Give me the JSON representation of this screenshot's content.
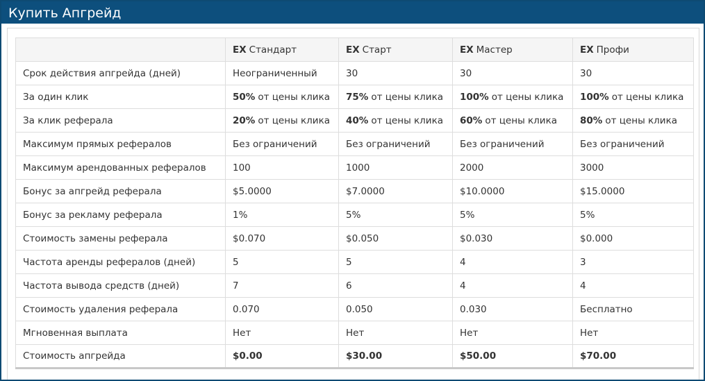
{
  "header": {
    "title": "Купить Апгрейд"
  },
  "table": {
    "columns": [
      "",
      {
        "b": "EX",
        "t": "Стандарт"
      },
      {
        "b": "EX",
        "t": "Старт"
      },
      {
        "b": "EX",
        "t": "Мастер"
      },
      {
        "b": "EX",
        "t": "Профи"
      }
    ],
    "rows": [
      [
        "Срок действия апгрейда (дней)",
        "Неограниченный",
        "30",
        "30",
        "30"
      ],
      [
        "За один клик",
        {
          "b": "50%",
          "t": "от цены клика"
        },
        {
          "b": "75%",
          "t": "от цены клика"
        },
        {
          "b": "100%",
          "t": "от цены клика"
        },
        {
          "b": "100%",
          "t": "от цены клика"
        }
      ],
      [
        "За клик реферала",
        {
          "b": "20%",
          "t": "от цены клика"
        },
        {
          "b": "40%",
          "t": "от цены клика"
        },
        {
          "b": "60%",
          "t": "от цены клика"
        },
        {
          "b": "80%",
          "t": "от цены клика"
        }
      ],
      [
        "Максимум прямых рефералов",
        "Без ограничений",
        "Без ограничений",
        "Без ограничений",
        "Без ограничений"
      ],
      [
        "Максимум арендованных рефералов",
        "100",
        "1000",
        "2000",
        "3000"
      ],
      [
        "Бонус за апгрейд реферала",
        "$5.0000",
        "$7.0000",
        "$10.0000",
        "$15.0000"
      ],
      [
        "Бонус за рекламу реферала",
        "1%",
        "5%",
        "5%",
        "5%"
      ],
      [
        "Стоимость замены реферала",
        "$0.070",
        "$0.050",
        "$0.030",
        "$0.000"
      ],
      [
        "Частота аренды рефералов (дней)",
        "5",
        "5",
        "4",
        "3"
      ],
      [
        "Частота вывода средств (дней)",
        "7",
        "6",
        "4",
        "4"
      ],
      [
        "Стоимость удаления реферала",
        "0.070",
        "0.050",
        "0.030",
        "Бесплатно"
      ],
      [
        "Мгновенная выплата",
        "Нет",
        "Нет",
        "Нет",
        "Нет"
      ],
      [
        "Стоимость апгрейда",
        {
          "b": "$0.00"
        },
        {
          "b": "$30.00"
        },
        {
          "b": "$50.00"
        },
        {
          "b": "$70.00"
        }
      ]
    ]
  }
}
